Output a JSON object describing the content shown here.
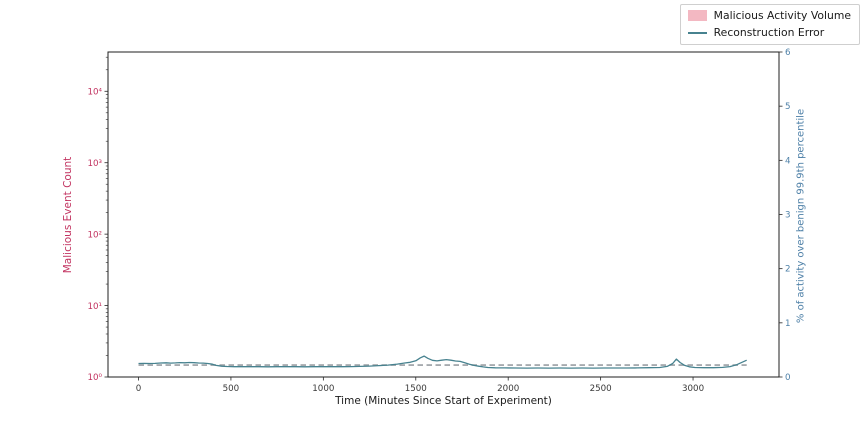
{
  "chart_data": {
    "type": "line",
    "title": "",
    "xlabel": "Time (Minutes Since Start of Experiment)",
    "x_ticks": [
      0,
      500,
      1000,
      1500,
      2000,
      2500,
      3000
    ],
    "xlim": [
      -165,
      3465
    ],
    "grid": false,
    "legend_position": "top-right",
    "plot_bg": "#ffffff",
    "frame_color": "#1f1f1f",
    "tick_mark_color": "#262626",
    "tick_label_color": "#3a3a3a",
    "text_color": "#1a1a1a",
    "left_axis": {
      "label": "Malicious Event Count",
      "scale": "log",
      "tick_labels": [
        "10⁰",
        "10¹",
        "10²",
        "10³",
        "10⁴"
      ],
      "tick_exponents": [
        0,
        1,
        2,
        3,
        4
      ],
      "lim_exponents": [
        0,
        4.55
      ],
      "color": "#c23360"
    },
    "right_axis": {
      "label": "% of activity over benign 99.9th percentile",
      "ticks": [
        0,
        1,
        2,
        3,
        4,
        5,
        6
      ],
      "lim": [
        0,
        6
      ],
      "color": "#4f81a8"
    },
    "legend": [
      {
        "label": "Malicious Activity Volume",
        "swatch": "patch",
        "color": "#f3b8c2"
      },
      {
        "label": "Reconstruction Error",
        "swatch": "line",
        "color": "#47828f"
      }
    ],
    "series": [
      {
        "name": "benign-99.9th-percentile-threshold",
        "axis": "right",
        "style": "dashed",
        "color": "#9a9fa4",
        "points": [
          [
            0,
            0.22
          ],
          [
            3290,
            0.22
          ]
        ]
      },
      {
        "name": "reconstruction-error",
        "axis": "right",
        "style": "solid",
        "color": "#47828f",
        "points": [
          [
            0,
            0.25
          ],
          [
            30,
            0.252
          ],
          [
            60,
            0.249
          ],
          [
            90,
            0.251
          ],
          [
            120,
            0.258
          ],
          [
            150,
            0.262
          ],
          [
            175,
            0.256
          ],
          [
            200,
            0.26
          ],
          [
            225,
            0.266
          ],
          [
            250,
            0.262
          ],
          [
            275,
            0.268
          ],
          [
            300,
            0.264
          ],
          [
            325,
            0.258
          ],
          [
            350,
            0.256
          ],
          [
            375,
            0.25
          ],
          [
            400,
            0.236
          ],
          [
            420,
            0.215
          ],
          [
            450,
            0.2
          ],
          [
            480,
            0.194
          ],
          [
            520,
            0.191
          ],
          [
            560,
            0.192
          ],
          [
            600,
            0.19
          ],
          [
            650,
            0.191
          ],
          [
            700,
            0.189
          ],
          [
            750,
            0.191
          ],
          [
            800,
            0.19
          ],
          [
            850,
            0.191
          ],
          [
            900,
            0.189
          ],
          [
            950,
            0.19
          ],
          [
            1000,
            0.19
          ],
          [
            1050,
            0.191
          ],
          [
            1100,
            0.19
          ],
          [
            1150,
            0.192
          ],
          [
            1200,
            0.196
          ],
          [
            1250,
            0.201
          ],
          [
            1300,
            0.21
          ],
          [
            1350,
            0.22
          ],
          [
            1400,
            0.238
          ],
          [
            1440,
            0.258
          ],
          [
            1470,
            0.272
          ],
          [
            1500,
            0.3
          ],
          [
            1525,
            0.355
          ],
          [
            1545,
            0.385
          ],
          [
            1565,
            0.345
          ],
          [
            1590,
            0.308
          ],
          [
            1615,
            0.298
          ],
          [
            1640,
            0.31
          ],
          [
            1665,
            0.322
          ],
          [
            1690,
            0.31
          ],
          [
            1715,
            0.296
          ],
          [
            1740,
            0.288
          ],
          [
            1765,
            0.262
          ],
          [
            1790,
            0.235
          ],
          [
            1815,
            0.215
          ],
          [
            1840,
            0.2
          ],
          [
            1865,
            0.186
          ],
          [
            1890,
            0.176
          ],
          [
            1930,
            0.17
          ],
          [
            1980,
            0.168
          ],
          [
            2040,
            0.166
          ],
          [
            2100,
            0.165
          ],
          [
            2160,
            0.166
          ],
          [
            2220,
            0.165
          ],
          [
            2280,
            0.166
          ],
          [
            2340,
            0.165
          ],
          [
            2400,
            0.166
          ],
          [
            2460,
            0.165
          ],
          [
            2520,
            0.166
          ],
          [
            2580,
            0.166
          ],
          [
            2640,
            0.167
          ],
          [
            2700,
            0.168
          ],
          [
            2760,
            0.171
          ],
          [
            2820,
            0.176
          ],
          [
            2860,
            0.196
          ],
          [
            2890,
            0.25
          ],
          [
            2910,
            0.33
          ],
          [
            2930,
            0.268
          ],
          [
            2955,
            0.215
          ],
          [
            2980,
            0.188
          ],
          [
            3010,
            0.176
          ],
          [
            3060,
            0.172
          ],
          [
            3110,
            0.172
          ],
          [
            3160,
            0.178
          ],
          [
            3200,
            0.192
          ],
          [
            3235,
            0.225
          ],
          [
            3265,
            0.272
          ],
          [
            3290,
            0.31
          ]
        ]
      }
    ]
  }
}
